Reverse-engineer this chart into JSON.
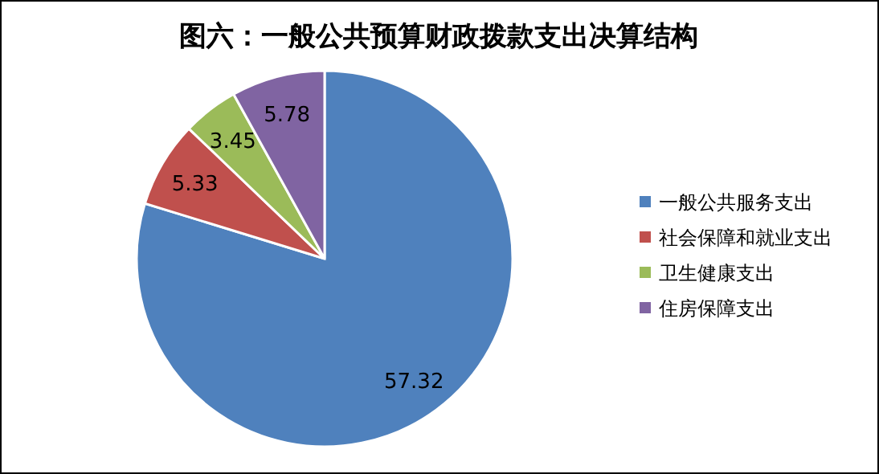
{
  "chart_data": {
    "type": "pie",
    "title": "图六：一般公共预算财政拨款支出决算结构",
    "categories": [
      "一般公共服务支出",
      "社会保障和就业支出",
      "卫生健康支出",
      "住房保障支出"
    ],
    "values": [
      57.32,
      5.33,
      3.45,
      5.78
    ],
    "colors": [
      "#4f81bd",
      "#c0504d",
      "#9bbb59",
      "#8064a2"
    ],
    "data_labels": true,
    "legend": "right"
  }
}
